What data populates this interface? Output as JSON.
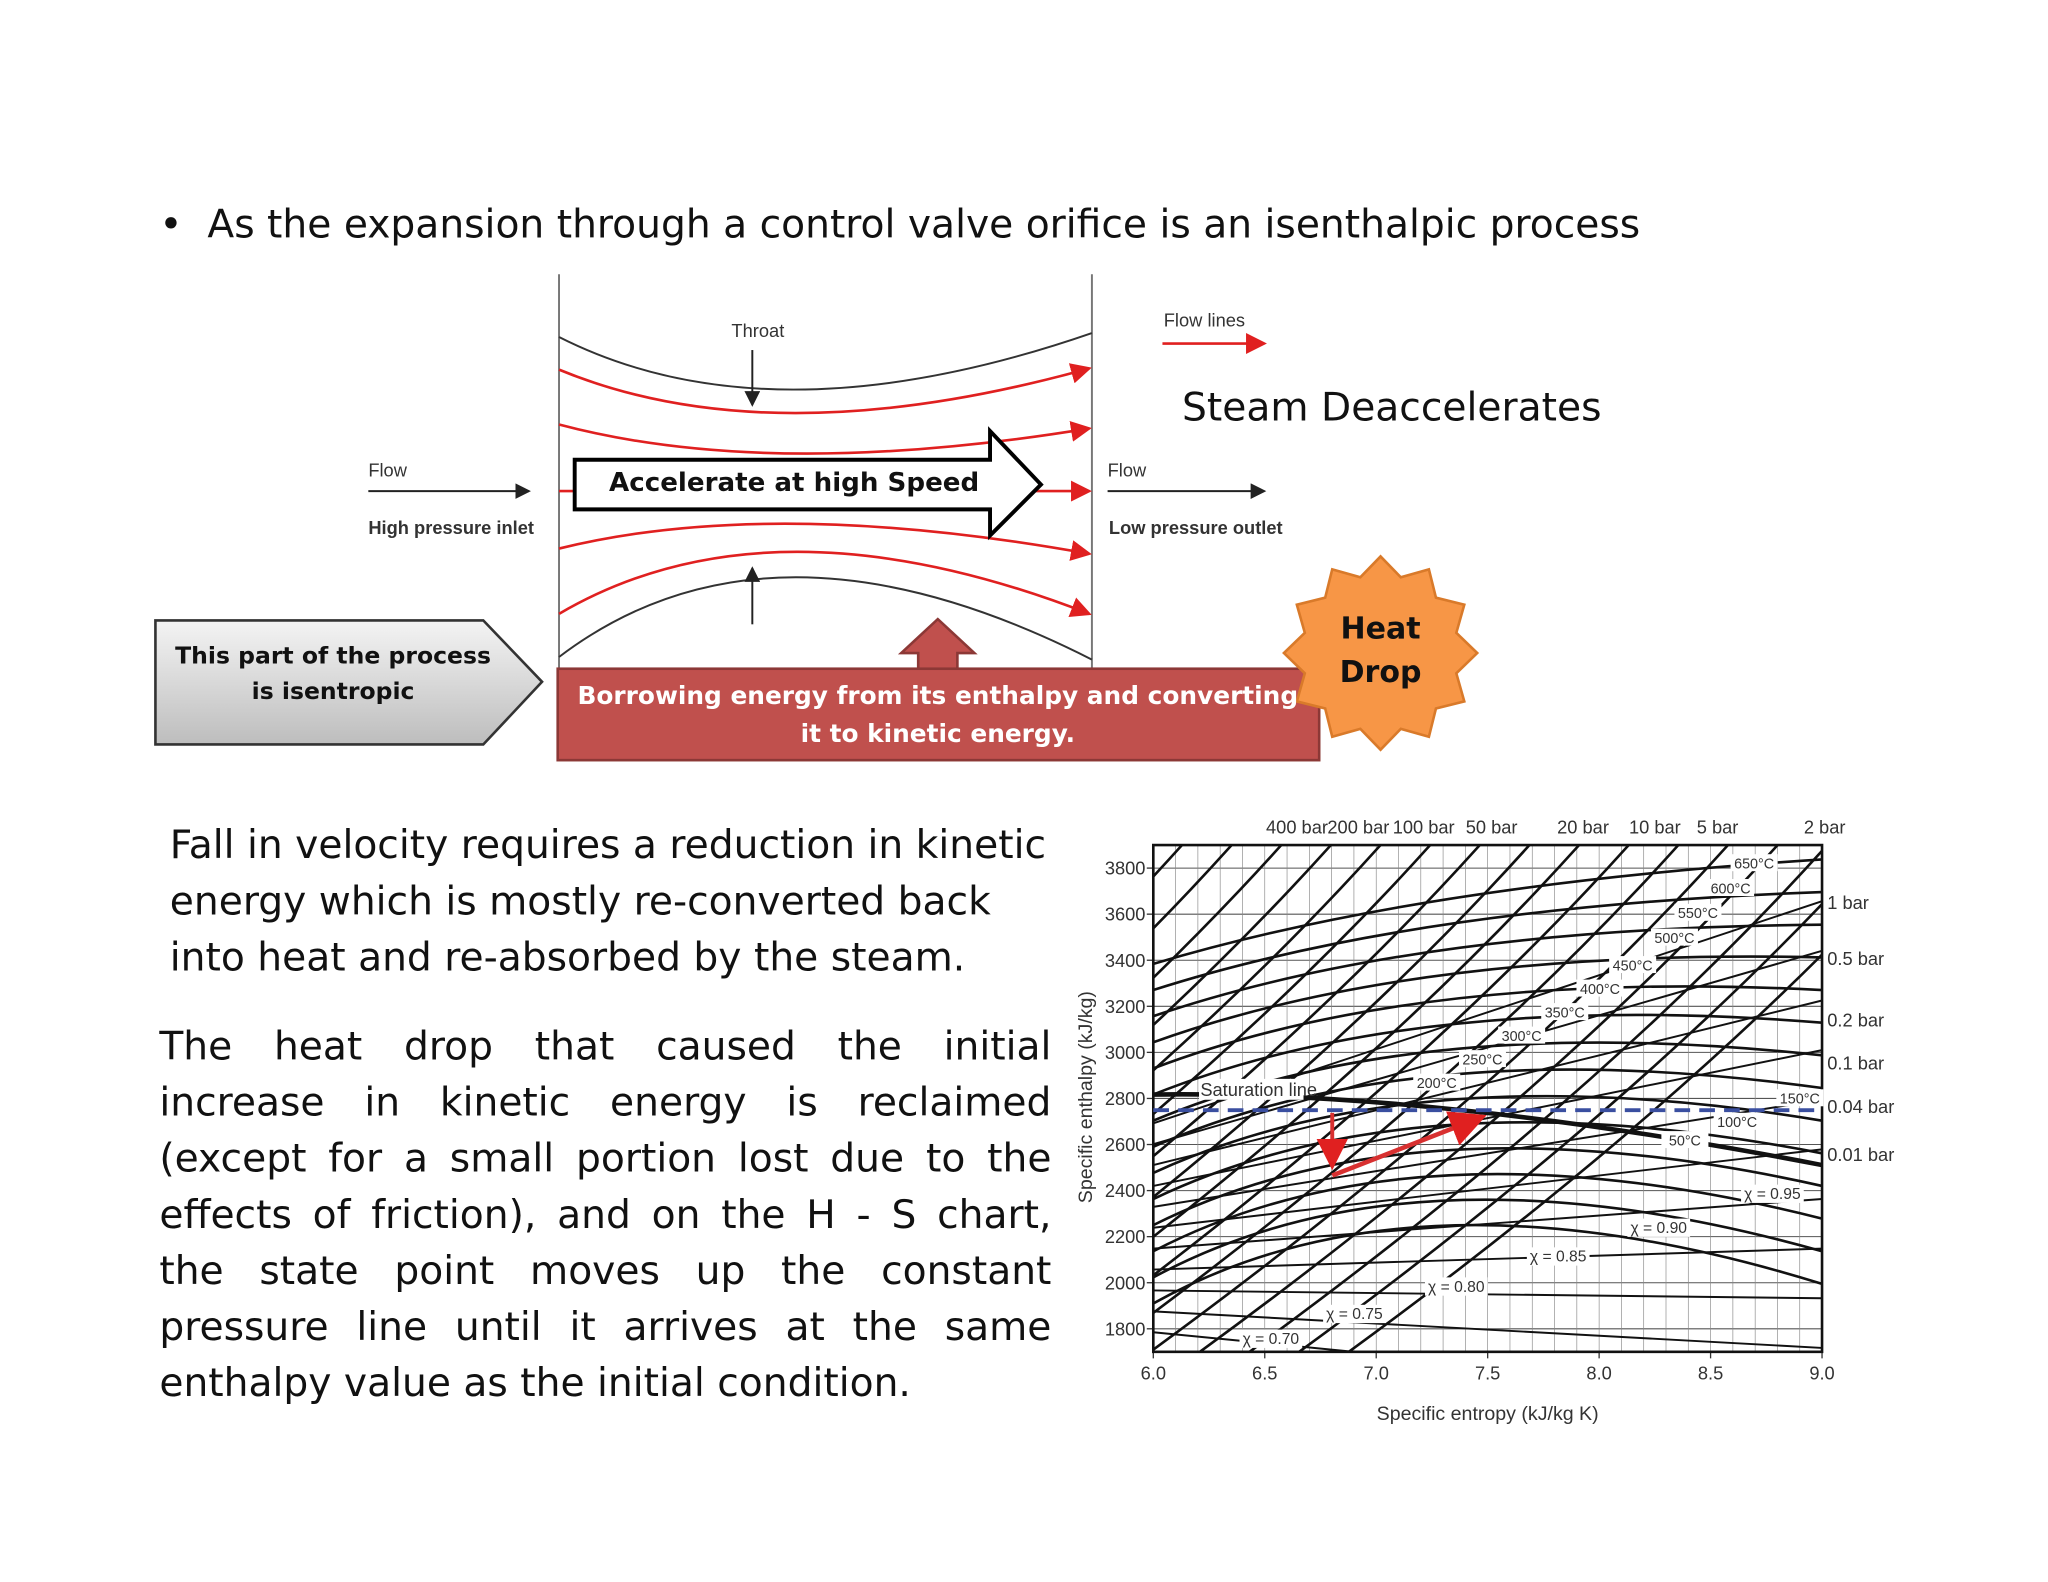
{
  "bullet": "As the expansion through a control valve orifice is an isenthalpic process",
  "nozzle": {
    "throat": "Throat",
    "flow_lines": "Flow lines",
    "flow_in": "Flow",
    "inlet": "High pressure inlet",
    "flow_out": "Flow",
    "outlet": "Low pressure outlet"
  },
  "callouts": {
    "accelerate": "Accelerate at high Speed",
    "steam": "Steam Deaccelerates",
    "isentropic": "This part of the process is isentropic",
    "borrowing": "Borrowing energy from its enthalpy and converting it to kinetic energy.",
    "heat_drop": "Heat Drop"
  },
  "paragraphs": [
    "Fall in velocity requires a reduction in kinetic energy which is mostly re-converted back into heat and re-absorbed by the steam.",
    "The heat drop that caused the initial increase in kinetic energy is reclaimed (except for a small portion lost due to the effects of friction), and on the H - S chart, the state point moves up the constant pressure line until it arrives at the same enthalpy value as the initial condition."
  ],
  "hs_chart": {
    "xlabel": "Specific entropy (kJ/kg K)",
    "ylabel": "Specific enthalpy (kJ/kg)",
    "xlim": [
      6,
      9
    ],
    "ylim": [
      1700,
      3900
    ],
    "xticks": [
      {
        "value": 6,
        "label": "6.0"
      },
      6.5,
      {
        "value": 7,
        "label": "7.0"
      },
      7.5,
      {
        "value": 8,
        "label": "8.0"
      },
      8.5,
      {
        "value": 9,
        "label": "9.0"
      }
    ],
    "yticks": [
      1800,
      2000,
      2200,
      2400,
      2600,
      2800,
      3000,
      3200,
      3400,
      3600,
      3800
    ],
    "pressure_labels_top": [
      "400 bar",
      "200 bar",
      "100 bar",
      "50 bar",
      "20 bar",
      "10 bar",
      "5 bar",
      "2 bar"
    ],
    "pressure_labels_right": [
      "1 bar",
      "0.5 bar",
      "0.2 bar",
      "0.1 bar",
      "0.04 bar",
      "0.01 bar"
    ],
    "temperatures": [
      "650°C",
      "600°C",
      "550°C",
      "500°C",
      "450°C",
      "400°C",
      "350°C",
      "300°C",
      "250°C",
      "200°C",
      "150°C",
      "100°C",
      "50°C"
    ],
    "qualities": [
      "χ = 0.95",
      "χ = 0.90",
      "χ = 0.85",
      "χ = 0.80",
      "χ = 0.75",
      "χ = 0.70"
    ],
    "saturation": "Saturation line"
  }
}
